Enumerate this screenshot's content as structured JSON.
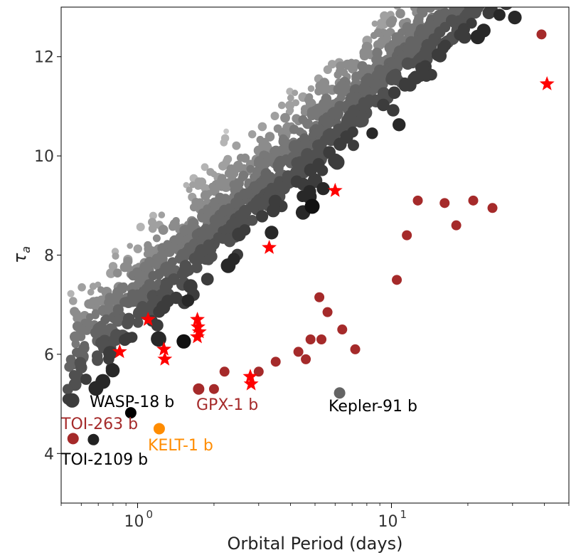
{
  "chart_data": {
    "type": "scatter",
    "title": "",
    "xlabel": "Orbital Period (days)",
    "ylabel": "τa",
    "xscale": "log",
    "xlim": [
      0.5,
      50
    ],
    "ylim": [
      3.0,
      13.0
    ],
    "x_ticks": [
      {
        "value": 1,
        "label": "10",
        "exponent": "0"
      },
      {
        "value": 10,
        "label": "10",
        "exponent": "1"
      }
    ],
    "y_ticks": [
      {
        "value": 4,
        "label": "4"
      },
      {
        "value": 6,
        "label": "6"
      },
      {
        "value": 8,
        "label": "8"
      },
      {
        "value": 10,
        "label": "10"
      },
      {
        "value": 12,
        "label": "12"
      }
    ],
    "background_population": {
      "description": "population cloud, gray shading",
      "n_points": 1500,
      "trend": {
        "slope_per_decade": 4.7,
        "intercept_tau_at_1d": 7.3
      },
      "colors": [
        "#c8c8c8",
        "#b4b4b4",
        "#a0a0a0",
        "#8c8c8c",
        "#787878",
        "#646464",
        "#505050",
        "#3c3c3c",
        "#282828",
        "#111111"
      ]
    },
    "highlighted_dark_red": {
      "color": "#a52a2a",
      "points": [
        {
          "x": 2.0,
          "y": 5.3
        },
        {
          "x": 2.2,
          "y": 5.65
        },
        {
          "x": 3.0,
          "y": 5.65
        },
        {
          "x": 3.5,
          "y": 5.85
        },
        {
          "x": 4.3,
          "y": 6.05
        },
        {
          "x": 4.8,
          "y": 6.3
        },
        {
          "x": 4.6,
          "y": 5.9
        },
        {
          "x": 5.3,
          "y": 6.3
        },
        {
          "x": 5.2,
          "y": 7.15
        },
        {
          "x": 5.6,
          "y": 6.85
        },
        {
          "x": 6.4,
          "y": 6.5
        },
        {
          "x": 7.2,
          "y": 6.1
        },
        {
          "x": 10.5,
          "y": 7.5
        },
        {
          "x": 11.5,
          "y": 8.4
        },
        {
          "x": 12.7,
          "y": 9.1
        },
        {
          "x": 16.2,
          "y": 9.05
        },
        {
          "x": 18.0,
          "y": 8.6
        },
        {
          "x": 21.0,
          "y": 9.1
        },
        {
          "x": 25.0,
          "y": 8.95
        },
        {
          "x": 39.0,
          "y": 12.45
        }
      ]
    },
    "star_markers": {
      "color": "#ff0000",
      "points": [
        {
          "x": 0.85,
          "y": 6.05
        },
        {
          "x": 1.1,
          "y": 6.7
        },
        {
          "x": 1.27,
          "y": 6.1
        },
        {
          "x": 1.28,
          "y": 5.9
        },
        {
          "x": 1.72,
          "y": 6.7
        },
        {
          "x": 1.73,
          "y": 6.55
        },
        {
          "x": 1.75,
          "y": 6.45
        },
        {
          "x": 1.72,
          "y": 6.35
        },
        {
          "x": 2.78,
          "y": 5.55
        },
        {
          "x": 2.8,
          "y": 5.4
        },
        {
          "x": 3.3,
          "y": 8.15
        },
        {
          "x": 6.0,
          "y": 9.3
        },
        {
          "x": 41.0,
          "y": 11.45
        }
      ]
    },
    "labeled_planets": [
      {
        "name": "WASP-18 b",
        "x": 0.94,
        "y": 4.82,
        "color": "#000000",
        "label_color": "#000000"
      },
      {
        "name": "GPX-1 b",
        "x": 1.74,
        "y": 5.3,
        "color": "#a52a2a",
        "label_color": "#a52a2a"
      },
      {
        "name": "Kepler-91 b",
        "x": 6.25,
        "y": 5.22,
        "color": "#646464",
        "label_color": "#000000"
      },
      {
        "name": "TOI-263 b",
        "x": 0.557,
        "y": 4.3,
        "color": "#a52a2a",
        "label_color": "#a52a2a"
      },
      {
        "name": "KELT-1 b",
        "x": 1.217,
        "y": 4.5,
        "color": "#ff8c00",
        "label_color": "#ff8c00"
      },
      {
        "name": "TOI-2109 b",
        "x": 0.67,
        "y": 4.28,
        "color": "#222222",
        "label_color": "#000000"
      }
    ]
  }
}
